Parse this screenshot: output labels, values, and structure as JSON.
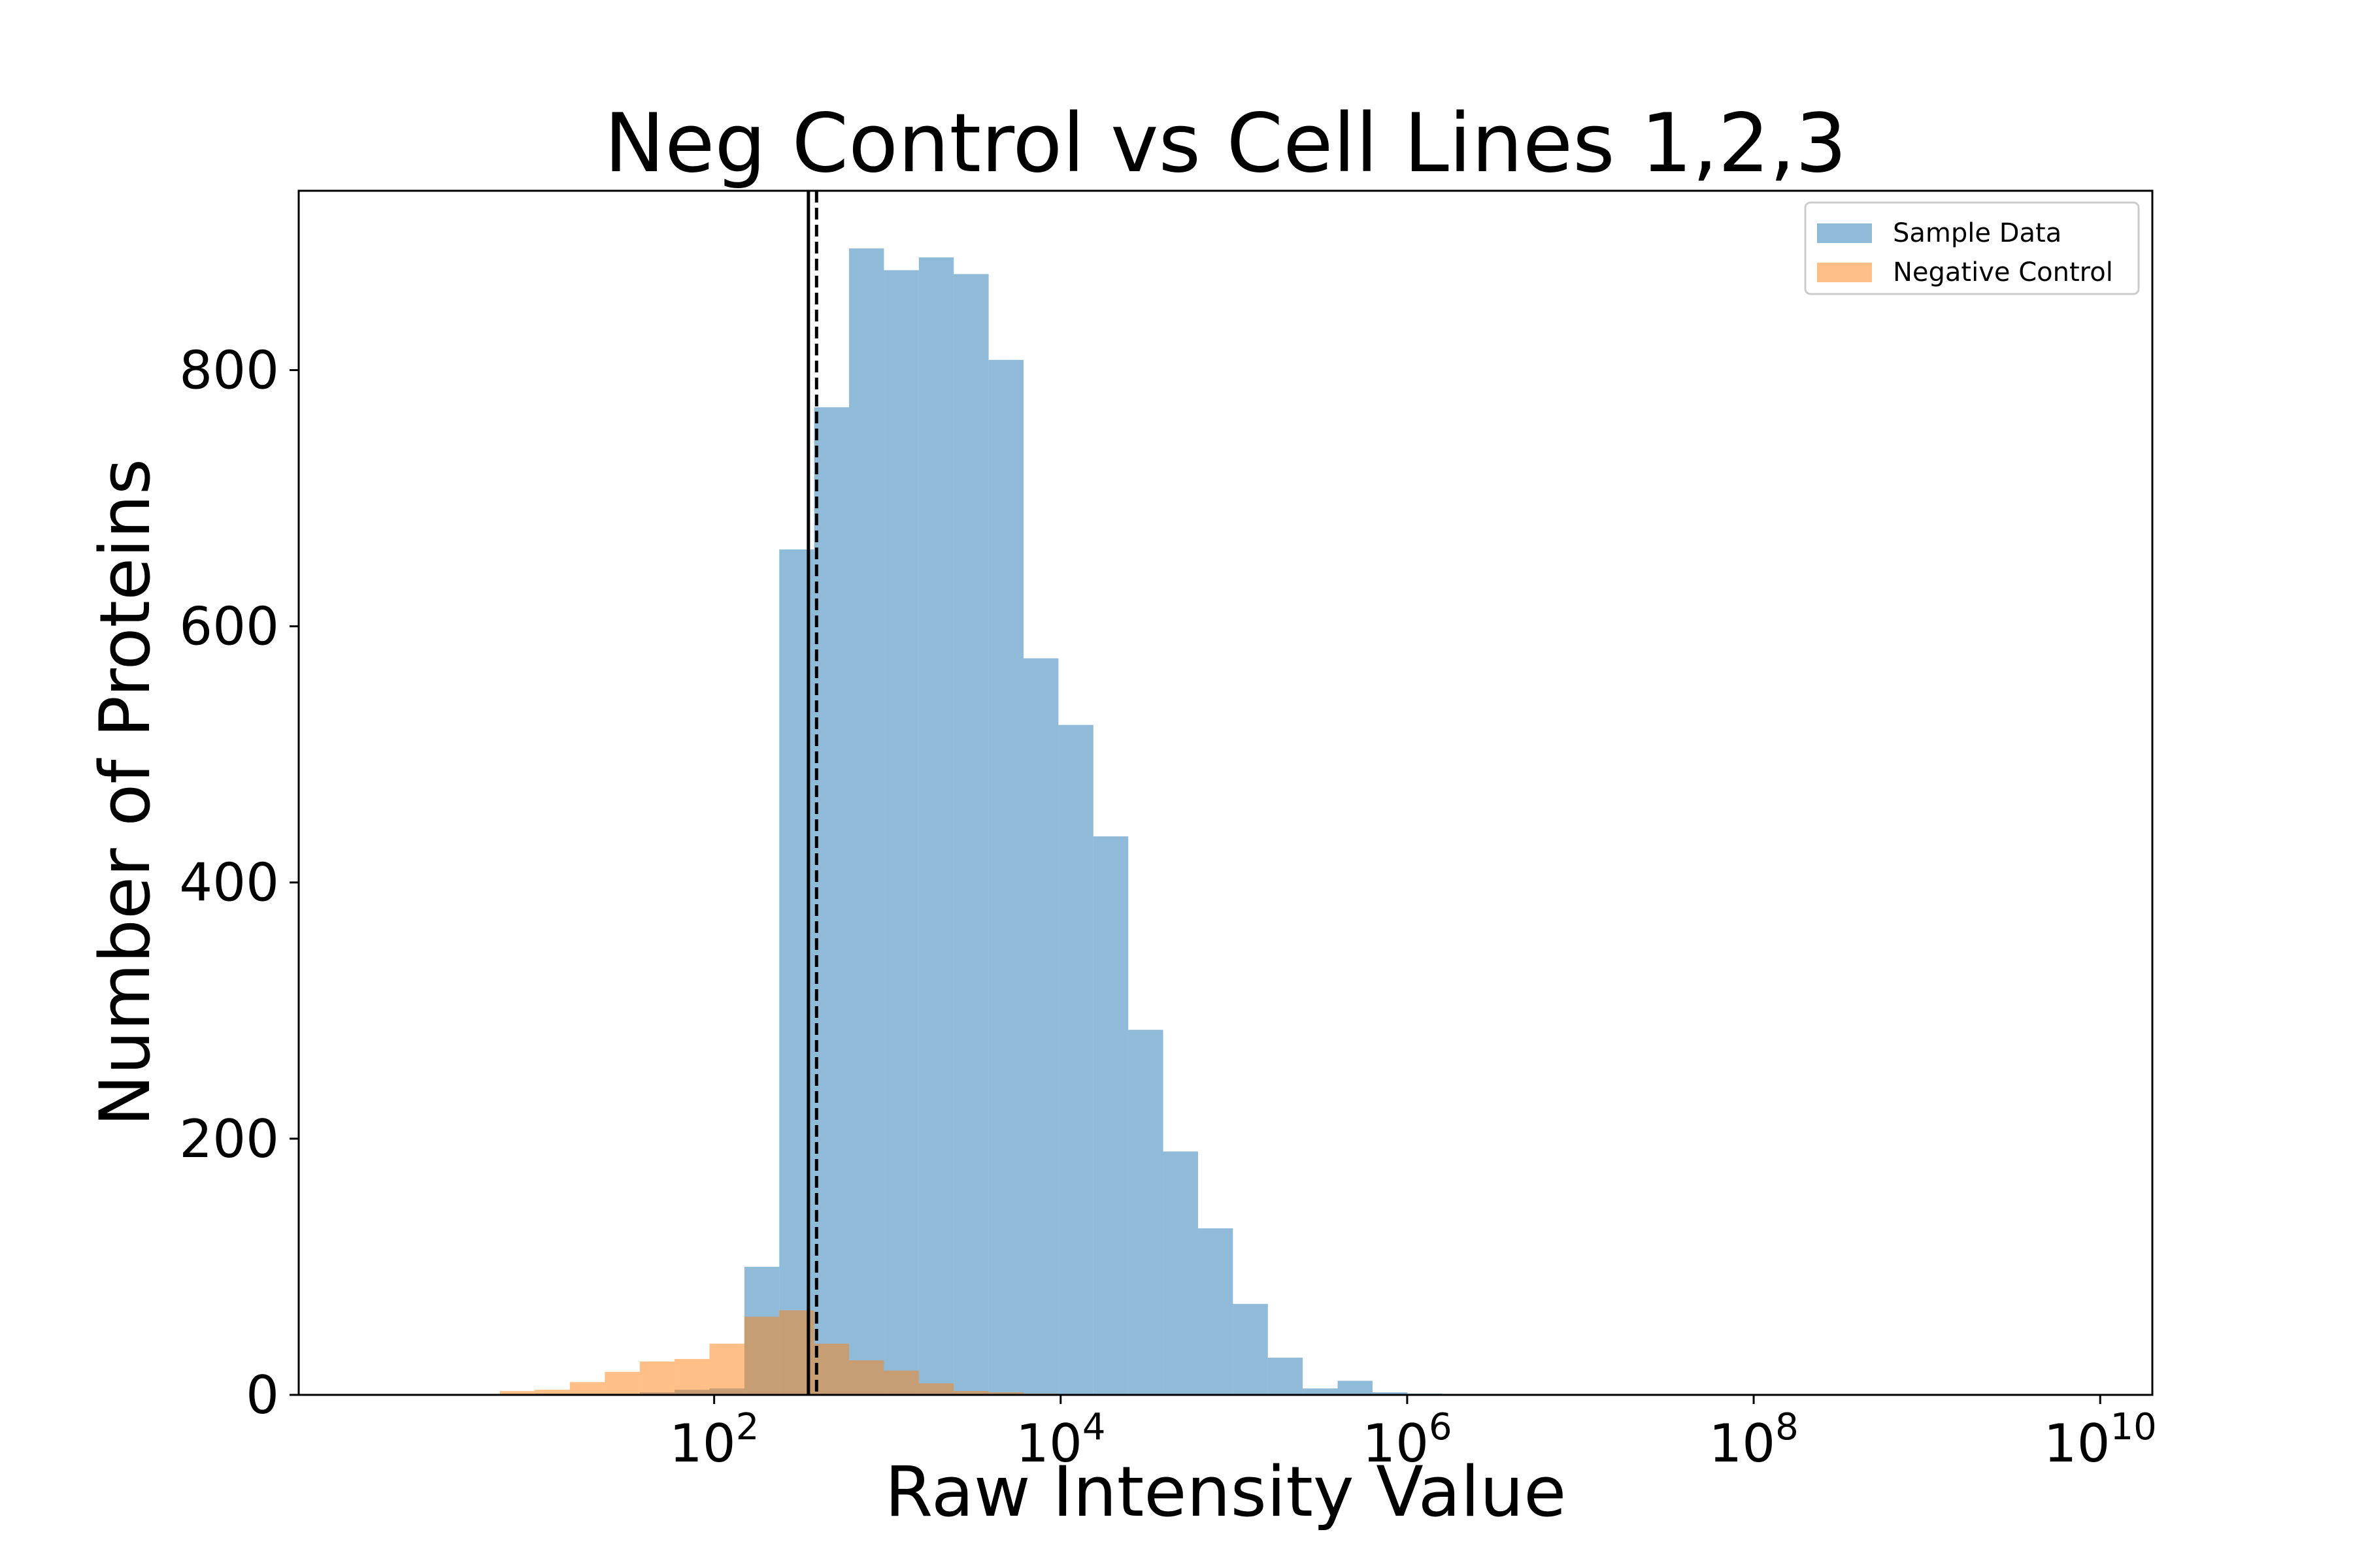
{
  "chart_data": {
    "type": "histogram",
    "title": "Neg Control vs Cell Lines 1,2,3",
    "xlabel": "Raw Intensity Value",
    "ylabel": "Number of Proteins",
    "x_scale": "log10",
    "x_range": [
      0.4,
      20000000000
    ],
    "ylim": [
      0,
      940
    ],
    "x_ticks": [
      {
        "value": 100,
        "base": "10",
        "exp": "2"
      },
      {
        "value": 10000,
        "base": "10",
        "exp": "4"
      },
      {
        "value": 1000000,
        "base": "10",
        "exp": "6"
      },
      {
        "value": 100000000,
        "base": "10",
        "exp": "8"
      },
      {
        "value": 10000000000,
        "base": "10",
        "exp": "10"
      }
    ],
    "y_ticks": [
      {
        "value": 0,
        "label": "0"
      },
      {
        "value": 200,
        "label": "200"
      },
      {
        "value": 400,
        "label": "400"
      },
      {
        "value": 600,
        "label": "600"
      },
      {
        "value": 800,
        "label": "800"
      }
    ],
    "legend": {
      "position": "top-right"
    },
    "series": [
      {
        "name": "Sample Data",
        "color": "#1f77b4",
        "opacity": 0.5,
        "bins": [
          {
            "x0": 5.8,
            "x1": 9.2,
            "count": 0
          },
          {
            "x0": 9.2,
            "x1": 14.7,
            "count": 1
          },
          {
            "x0": 14.7,
            "x1": 23.4,
            "count": 1
          },
          {
            "x0": 23.4,
            "x1": 37.2,
            "count": 1
          },
          {
            "x0": 37.2,
            "x1": 59.1,
            "count": 2
          },
          {
            "x0": 59.1,
            "x1": 94.0,
            "count": 4
          },
          {
            "x0": 94.0,
            "x1": 149.4,
            "count": 5
          },
          {
            "x0": 149.4,
            "x1": 237.6,
            "count": 100
          },
          {
            "x0": 237.6,
            "x1": 377.8,
            "count": 660
          },
          {
            "x0": 377.8,
            "x1": 600.7,
            "count": 771
          },
          {
            "x0": 600.7,
            "x1": 955.2,
            "count": 895
          },
          {
            "x0": 955.2,
            "x1": 1518.9,
            "count": 878
          },
          {
            "x0": 1518.9,
            "x1": 2415.2,
            "count": 888
          },
          {
            "x0": 2415.2,
            "x1": 3840.4,
            "count": 875
          },
          {
            "x0": 3840.4,
            "x1": 6106.7,
            "count": 808
          },
          {
            "x0": 6106.7,
            "x1": 9710.3,
            "count": 575
          },
          {
            "x0": 9710.3,
            "x1": 15440.5,
            "count": 523
          },
          {
            "x0": 15440.5,
            "x1": 24552.1,
            "count": 436
          },
          {
            "x0": 24552.1,
            "x1": 39040.6,
            "count": 285
          },
          {
            "x0": 39040.6,
            "x1": 62078.7,
            "count": 190
          },
          {
            "x0": 62078.7,
            "x1": 98712.7,
            "count": 130
          },
          {
            "x0": 98712.7,
            "x1": 156963.7,
            "count": 71
          },
          {
            "x0": 156963.7,
            "x1": 249589.0,
            "count": 29
          },
          {
            "x0": 249589.0,
            "x1": 396871.0,
            "count": 5
          },
          {
            "x0": 396871.0,
            "x1": 631065.0,
            "count": 11
          },
          {
            "x0": 631065.0,
            "x1": 1003490.0,
            "count": 2
          },
          {
            "x0": 1003490.0,
            "x1": 1595660.0,
            "count": 1
          }
        ]
      },
      {
        "name": "Negative Control",
        "color": "#ff7f0e",
        "opacity": 0.5,
        "bins": [
          {
            "x0": 5.8,
            "x1": 9.2,
            "count": 3
          },
          {
            "x0": 9.2,
            "x1": 14.7,
            "count": 4
          },
          {
            "x0": 14.7,
            "x1": 23.4,
            "count": 10
          },
          {
            "x0": 23.4,
            "x1": 37.2,
            "count": 18
          },
          {
            "x0": 37.2,
            "x1": 59.1,
            "count": 26
          },
          {
            "x0": 59.1,
            "x1": 94.0,
            "count": 28
          },
          {
            "x0": 94.0,
            "x1": 149.4,
            "count": 40
          },
          {
            "x0": 149.4,
            "x1": 237.6,
            "count": 61
          },
          {
            "x0": 237.6,
            "x1": 377.8,
            "count": 66
          },
          {
            "x0": 377.8,
            "x1": 600.7,
            "count": 40
          },
          {
            "x0": 600.7,
            "x1": 955.2,
            "count": 27
          },
          {
            "x0": 955.2,
            "x1": 1518.9,
            "count": 19
          },
          {
            "x0": 1518.9,
            "x1": 2415.2,
            "count": 9
          },
          {
            "x0": 2415.2,
            "x1": 3840.4,
            "count": 3
          },
          {
            "x0": 3840.4,
            "x1": 6106.7,
            "count": 2
          },
          {
            "x0": 6106.7,
            "x1": 9710.3,
            "count": 1
          }
        ]
      }
    ],
    "reference_lines": [
      {
        "x": 350,
        "style": "solid",
        "color": "#000000"
      },
      {
        "x": 390,
        "style": "dashed",
        "color": "#000000"
      }
    ]
  }
}
